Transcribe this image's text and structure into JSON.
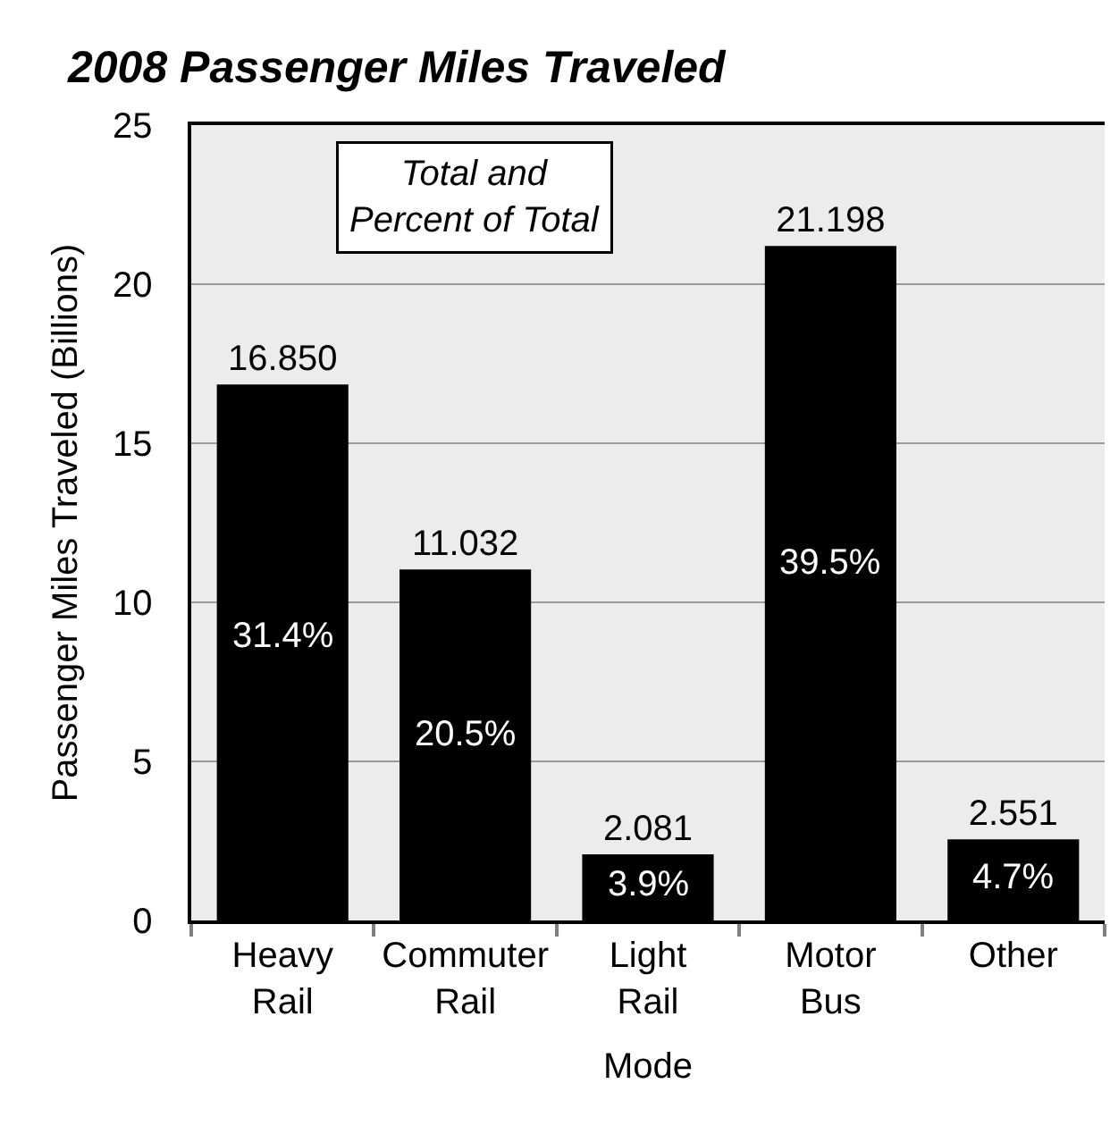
{
  "chart_data": {
    "type": "bar",
    "title": "2008 Passenger Miles Traveled",
    "xlabel": "Mode",
    "ylabel": "Passenger Miles Traveled (Billions)",
    "categories": [
      "Heavy\nRail",
      "Commuter\nRail",
      "Light\nRail",
      "Motor\nBus",
      "Other"
    ],
    "values": [
      16.85,
      11.032,
      2.081,
      21.198,
      2.551
    ],
    "value_labels": [
      "16.850",
      "11.032",
      "2.081",
      "21.198",
      "2.551"
    ],
    "color": "#000000",
    "ylim": [
      0,
      25
    ],
    "yticks": [
      0,
      5,
      10,
      15,
      20,
      25
    ],
    "grid": "y",
    "annotations": [
      "Total and\nPercent of Total",
      "31.4%",
      "20.5%",
      "3.9%",
      "39.5%",
      "4.7%"
    ]
  }
}
